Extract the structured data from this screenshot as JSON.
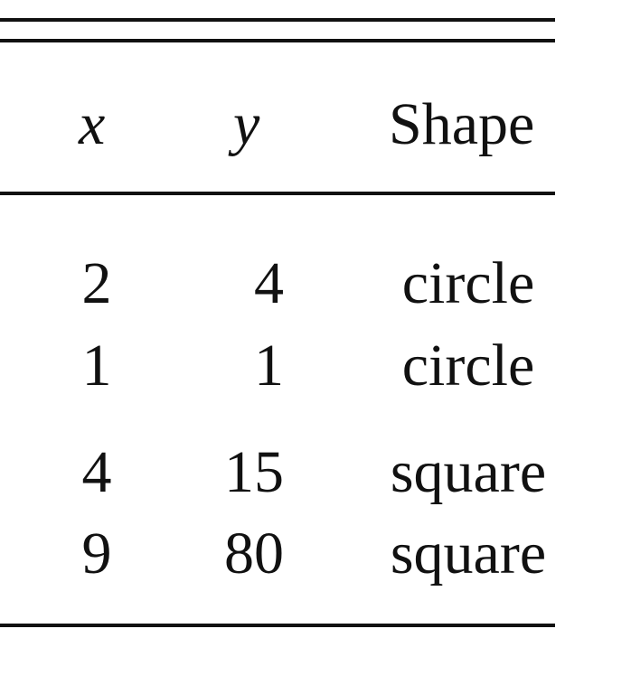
{
  "table": {
    "headers": {
      "x": "x",
      "y": "y",
      "shape": "Shape"
    },
    "rows": [
      {
        "x": "2",
        "y": "4",
        "shape": "circle"
      },
      {
        "x": "1",
        "y": "1",
        "shape": "circle"
      },
      {
        "x": "4",
        "y": "15",
        "shape": "square"
      },
      {
        "x": "9",
        "y": "80",
        "shape": "square"
      }
    ]
  }
}
